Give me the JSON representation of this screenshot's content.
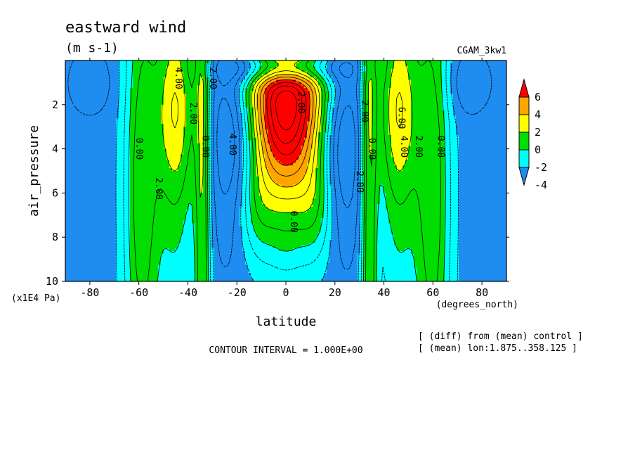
{
  "chart_data": {
    "type": "heatmap",
    "title": "eastward wind",
    "units": "(m s-1)",
    "run_label": "CGAM_3kw1",
    "xlabel": "latitude",
    "x_units": "(degrees_north)",
    "ylabel": "air_pressure",
    "y_units": "(x1E4 Pa)",
    "xlim": [
      -90,
      90
    ],
    "ylim": [
      10,
      0
    ],
    "x_ticks": [
      -80,
      -60,
      -40,
      -20,
      0,
      20,
      40,
      60,
      80
    ],
    "y_ticks": [
      2,
      4,
      6,
      8,
      10
    ],
    "contour_interval_text": "CONTOUR INTERVAL = 1.000E+00",
    "notes": [
      "[ (diff) from (mean) control ]",
      "[ (mean) lon:1.875..358.125 ]"
    ],
    "colorbar": {
      "levels": [
        -4,
        -2,
        0,
        2,
        4,
        6
      ],
      "colors": [
        "#1e8cf0",
        "#00ffff",
        "#00dd00",
        "#ffff00",
        "#ffa500",
        "#ff0000"
      ],
      "extend": "both"
    },
    "contour_labels": [
      {
        "text": "4.00",
        "x": -44,
        "y": 0.8
      },
      {
        "text": "2.00",
        "x": -30,
        "y": 0.8
      },
      {
        "text": "2.00",
        "x": -38,
        "y": 2.4
      },
      {
        "text": "0.00",
        "x": -60,
        "y": 4.0
      },
      {
        "text": "0.00",
        "x": -33,
        "y": 3.9
      },
      {
        "text": "2.00",
        "x": -52,
        "y": 5.8
      },
      {
        "text": "4.00",
        "x": -22,
        "y": 3.8
      },
      {
        "text": "2.00",
        "x": 6,
        "y": 1.9
      },
      {
        "text": "2.00",
        "x": 32,
        "y": 2.3
      },
      {
        "text": "2.00",
        "x": 30,
        "y": 5.5
      },
      {
        "text": "0.00",
        "x": 35,
        "y": 4.0
      },
      {
        "text": "4.00",
        "x": 48,
        "y": 3.9
      },
      {
        "text": "6.00",
        "x": 47,
        "y": 2.6
      },
      {
        "text": "2.00",
        "x": 54,
        "y": 3.9
      },
      {
        "text": "0.00",
        "x": 63,
        "y": 3.9
      },
      {
        "text": "0.00",
        "x": 3,
        "y": 7.3
      }
    ]
  }
}
